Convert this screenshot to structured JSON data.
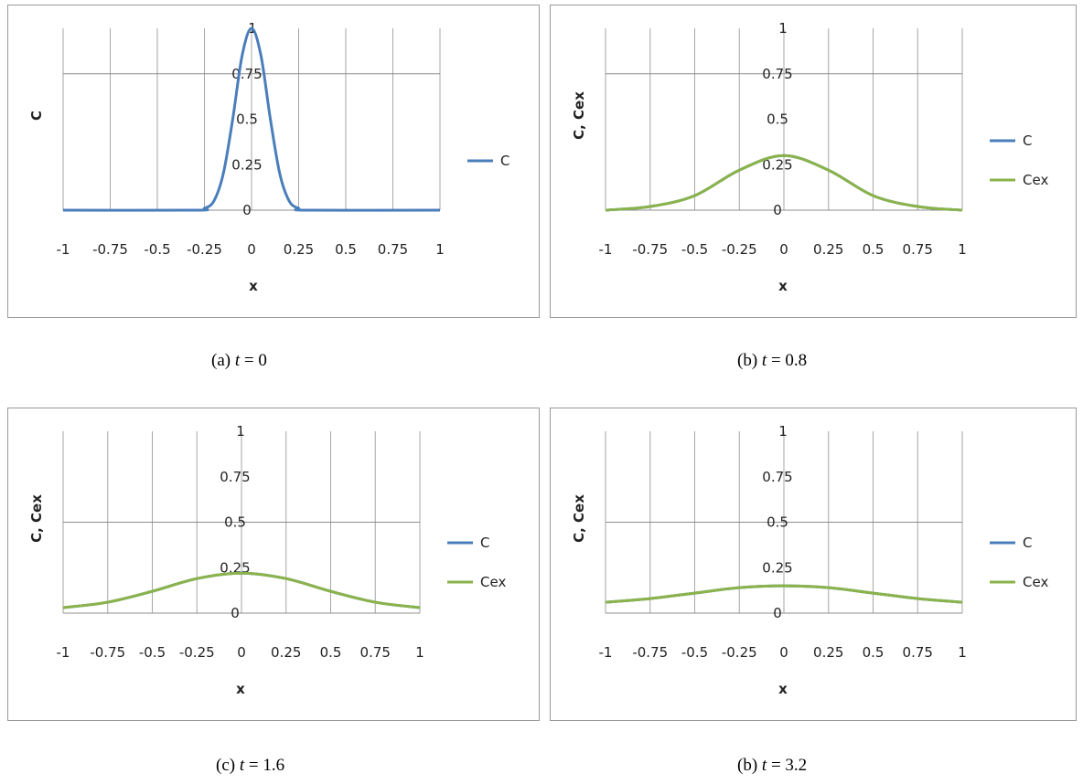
{
  "colors": {
    "C": "#4a7ebb",
    "Cex": "#8ab34a",
    "grid": "#a6a6a6",
    "axis": "#8c8c8c"
  },
  "chart_data": [
    {
      "type": "line",
      "caption_prefix": "(a) ",
      "caption_var": "t",
      "caption_suffix": " = 0",
      "xlabel": "x",
      "ylabel": "C",
      "xlim": [
        -1,
        1
      ],
      "ylim": [
        0,
        1
      ],
      "xticks": [
        "-1",
        "-0.75",
        "-0.5",
        "-0.25",
        "0",
        "0.25",
        "0.5",
        "0.75",
        "1"
      ],
      "yticks": [
        "0",
        "0.25",
        "0.5",
        "0.75",
        "1"
      ],
      "legend": "right",
      "series": [
        {
          "name": "C",
          "color": "#4a7ebb",
          "x": [
            -1,
            -0.3,
            -0.25,
            -0.2,
            -0.15,
            -0.1,
            -0.05,
            0,
            0.05,
            0.1,
            0.15,
            0.2,
            0.25,
            0.3,
            1
          ],
          "y": [
            0,
            0,
            0.01,
            0.05,
            0.2,
            0.5,
            0.85,
            1,
            0.85,
            0.5,
            0.2,
            0.05,
            0.01,
            0,
            0
          ]
        }
      ]
    },
    {
      "type": "line",
      "caption_prefix": "(b) ",
      "caption_var": "t",
      "caption_suffix": " = 0.8",
      "xlabel": "x",
      "ylabel": "C, Cex",
      "xlim": [
        -1,
        1
      ],
      "ylim": [
        0,
        1
      ],
      "xticks": [
        "-1",
        "-0.75",
        "-0.5",
        "-0.25",
        "0",
        "0.25",
        "0.5",
        "0.75",
        "1"
      ],
      "yticks": [
        "0",
        "0.25",
        "0.5",
        "0.75",
        "1"
      ],
      "legend": "right",
      "series": [
        {
          "name": "C",
          "color": "#4a7ebb",
          "x": [
            -1,
            -0.75,
            -0.5,
            -0.25,
            0,
            0.25,
            0.5,
            0.75,
            1
          ],
          "y": [
            0,
            0.02,
            0.08,
            0.22,
            0.3,
            0.22,
            0.08,
            0.02,
            0
          ]
        },
        {
          "name": "Cex",
          "color": "#8ab34a",
          "x": [
            -1,
            -0.75,
            -0.5,
            -0.25,
            0,
            0.25,
            0.5,
            0.75,
            1
          ],
          "y": [
            0,
            0.02,
            0.08,
            0.22,
            0.3,
            0.22,
            0.08,
            0.02,
            0
          ]
        }
      ]
    },
    {
      "type": "line",
      "caption_prefix": "(c) ",
      "caption_var": "t",
      "caption_suffix": " = 1.6",
      "xlabel": "x",
      "ylabel": "C, Cex",
      "xlim": [
        -1,
        1
      ],
      "ylim": [
        0,
        1
      ],
      "xticks": [
        "-1",
        "-0.75",
        "-0.5",
        "-0.25",
        "0",
        "0.25",
        "0.5",
        "0.75",
        "1"
      ],
      "yticks": [
        "0",
        "0.25",
        "0.5",
        "0.75",
        "1"
      ],
      "legend": "right",
      "series": [
        {
          "name": "C",
          "color": "#4a7ebb",
          "x": [
            -1,
            -0.75,
            -0.5,
            -0.25,
            0,
            0.25,
            0.5,
            0.75,
            1
          ],
          "y": [
            0.03,
            0.06,
            0.12,
            0.19,
            0.22,
            0.19,
            0.12,
            0.06,
            0.03
          ]
        },
        {
          "name": "Cex",
          "color": "#8ab34a",
          "x": [
            -1,
            -0.75,
            -0.5,
            -0.25,
            0,
            0.25,
            0.5,
            0.75,
            1
          ],
          "y": [
            0.03,
            0.06,
            0.12,
            0.19,
            0.22,
            0.19,
            0.12,
            0.06,
            0.03
          ]
        }
      ]
    },
    {
      "type": "line",
      "caption_prefix": "(b) ",
      "caption_var": "t",
      "caption_suffix": " = 3.2",
      "xlabel": "x",
      "ylabel": "C, Cex",
      "xlim": [
        -1,
        1
      ],
      "ylim": [
        0,
        1
      ],
      "xticks": [
        "-1",
        "-0.75",
        "-0.5",
        "-0.25",
        "0",
        "0.25",
        "0.5",
        "0.75",
        "1"
      ],
      "yticks": [
        "0",
        "0.25",
        "0.5",
        "0.75",
        "1"
      ],
      "legend": "right",
      "series": [
        {
          "name": "C",
          "color": "#4a7ebb",
          "x": [
            -1,
            -0.75,
            -0.5,
            -0.25,
            0,
            0.25,
            0.5,
            0.75,
            1
          ],
          "y": [
            0.06,
            0.08,
            0.11,
            0.14,
            0.15,
            0.14,
            0.11,
            0.08,
            0.06
          ]
        },
        {
          "name": "Cex",
          "color": "#8ab34a",
          "x": [
            -1,
            -0.75,
            -0.5,
            -0.25,
            0,
            0.25,
            0.5,
            0.75,
            1
          ],
          "y": [
            0.06,
            0.08,
            0.11,
            0.14,
            0.15,
            0.14,
            0.11,
            0.08,
            0.06
          ]
        }
      ]
    }
  ]
}
